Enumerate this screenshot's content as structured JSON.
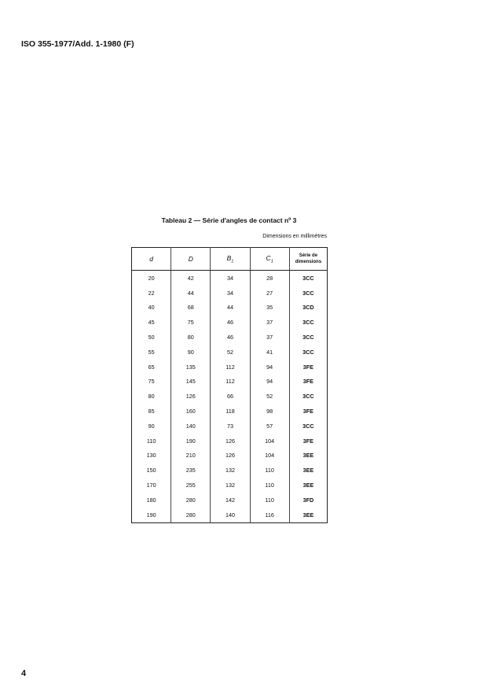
{
  "header": "ISO 355-1977/Add. 1-1980 (F)",
  "table": {
    "caption": "Tableau 2 — Série d'angles de contact nº 3",
    "units": "Dimensions en millimètres",
    "columns": [
      {
        "main": "d",
        "sub": ""
      },
      {
        "main": "D",
        "sub": ""
      },
      {
        "main": "B",
        "sub": "1"
      },
      {
        "main": "C",
        "sub": "1"
      },
      {
        "main": "Série de dimensions",
        "sub": ""
      }
    ],
    "rows": [
      [
        "20",
        "42",
        "34",
        "28",
        "3CC"
      ],
      [
        "22",
        "44",
        "34",
        "27",
        "3CC"
      ],
      [
        "40",
        "68",
        "44",
        "35",
        "3CD"
      ],
      [
        "45",
        "75",
        "46",
        "37",
        "3CC"
      ],
      [
        "50",
        "80",
        "46",
        "37",
        "3CC"
      ],
      [
        "55",
        "90",
        "52",
        "41",
        "3CC"
      ],
      [
        "65",
        "135",
        "112",
        "94",
        "3FE"
      ],
      [
        "75",
        "145",
        "112",
        "94",
        "3FE"
      ],
      [
        "80",
        "126",
        "66",
        "52",
        "3CC"
      ],
      [
        "85",
        "160",
        "118",
        "98",
        "3FE"
      ],
      [
        "90",
        "140",
        "73",
        "57",
        "3CC"
      ],
      [
        "110",
        "190",
        "126",
        "104",
        "3FE"
      ],
      [
        "130",
        "210",
        "126",
        "104",
        "3EE"
      ],
      [
        "150",
        "235",
        "132",
        "110",
        "3EE"
      ],
      [
        "170",
        "255",
        "132",
        "110",
        "3EE"
      ],
      [
        "180",
        "280",
        "142",
        "110",
        "3FD"
      ],
      [
        "190",
        "280",
        "140",
        "116",
        "3EE"
      ]
    ]
  },
  "page_number": "4"
}
